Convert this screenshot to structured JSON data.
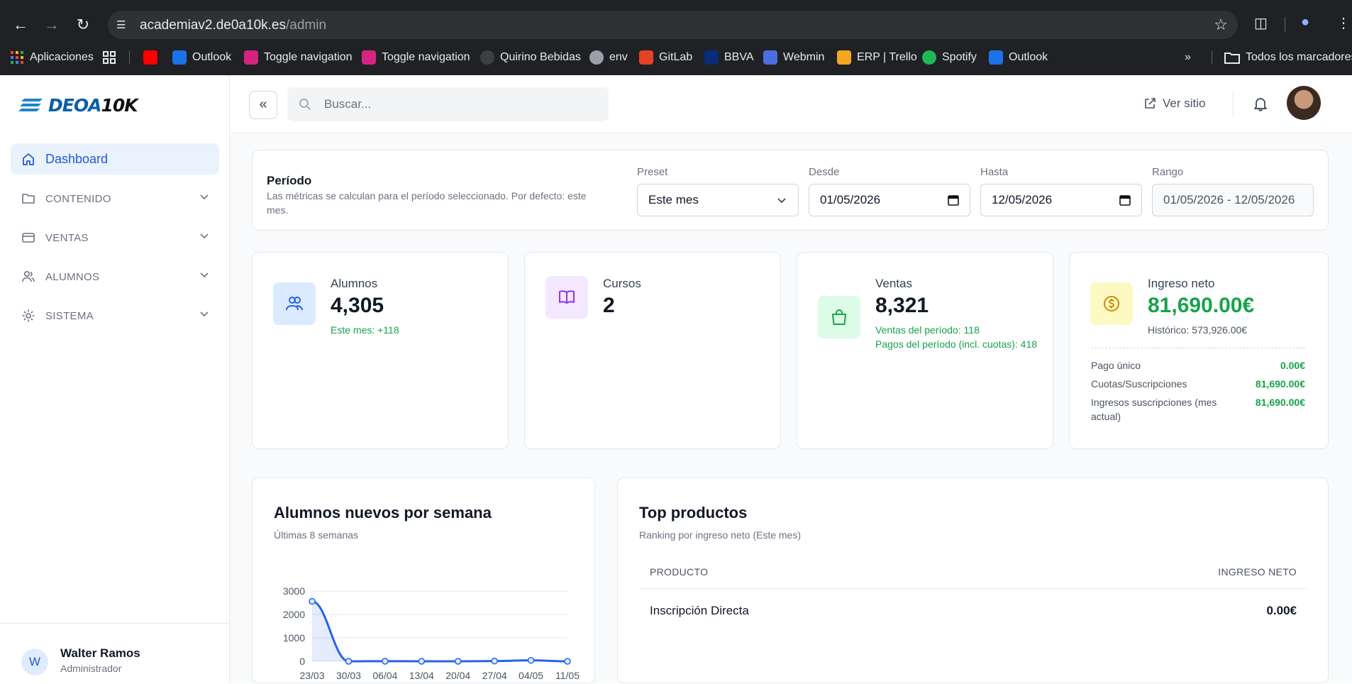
{
  "browser": {
    "url_host": "academiav2.de0a10k.es",
    "url_path": "/admin",
    "bookmarks": [
      {
        "label": "Aplicaciones",
        "color": "#ea4335"
      },
      {
        "label": "",
        "color": "#ff0000"
      },
      {
        "label": "Outlook",
        "color": "#1a73e8"
      },
      {
        "label": "Toggle navigation",
        "color": "#d3257f"
      },
      {
        "label": "Toggle navigation",
        "color": "#d3257f"
      },
      {
        "label": "Quirino Bebidas",
        "color": "#3c4043"
      },
      {
        "label": "env",
        "color": "#9aa0a6"
      },
      {
        "label": "GitLab",
        "color": "#e24329"
      },
      {
        "label": "BBVA",
        "color": "#0a2a7a"
      },
      {
        "label": "Webmin",
        "color": "#4a6ee0"
      },
      {
        "label": "ERP | Trello",
        "color": "#f5a623"
      },
      {
        "label": "Spotify",
        "color": "#1db954"
      },
      {
        "label": "Outlook",
        "color": "#1a73e8"
      }
    ],
    "all_bookmarks": "Todos los marcadores"
  },
  "brand": {
    "name_a": "DEOA",
    "name_b": "10K"
  },
  "sidebar": {
    "dashboard": "Dashboard",
    "sections": [
      "CONTENIDO",
      "VENTAS",
      "ALUMNOS",
      "SISTEMA"
    ],
    "user_name": "Walter Ramos",
    "user_role": "Administrador",
    "user_initial": "W"
  },
  "topbar": {
    "search_placeholder": "Buscar...",
    "view_site": "Ver sitio"
  },
  "period": {
    "title": "Período",
    "description": "Las métricas se calculan para el período seleccionado. Por defecto: este mes.",
    "preset_label": "Preset",
    "preset_value": "Este mes",
    "from_label": "Desde",
    "from_value": "01/05/2026",
    "to_label": "Hasta",
    "to_value": "12/05/2026",
    "range_label": "Rango",
    "range_value": "01/05/2026 - 12/05/2026"
  },
  "stats": {
    "students": {
      "name": "Alumnos",
      "value": "4,305",
      "sub": "Este mes: +118"
    },
    "courses": {
      "name": "Cursos",
      "value": "2"
    },
    "sales": {
      "name": "Ventas",
      "value": "8,321",
      "sub1": "Ventas del período: 118",
      "sub2": "Pagos del período (incl. cuotas): 418"
    },
    "income": {
      "name": "Ingreso neto",
      "value": "81,690.00€",
      "historic": "Histórico: 573,926.00€",
      "rows": [
        {
          "label": "Pago único",
          "value": "0.00€"
        },
        {
          "label": "Cuotas/Suscripciones",
          "value": "81,690.00€"
        },
        {
          "label": "Ingresos suscripciones (mes actual)",
          "value": "81,690.00€"
        }
      ]
    }
  },
  "weekly": {
    "title": "Alumnos nuevos por semana",
    "subtitle": "Últimas 8 semanas"
  },
  "chart_data": {
    "type": "line",
    "categories": [
      "23/03",
      "30/03",
      "06/04",
      "13/04",
      "20/04",
      "27/04",
      "04/05",
      "11/05"
    ],
    "values": [
      2560,
      0,
      5,
      0,
      0,
      10,
      40,
      0
    ],
    "ylim": [
      0,
      3000
    ],
    "yticks": [
      "0",
      "1000",
      "2000",
      "3000"
    ],
    "grid": true,
    "color": "#2563eb"
  },
  "top_products": {
    "title": "Top productos",
    "subtitle": "Ranking por ingreso neto (Este mes)",
    "col_product": "PRODUCTO",
    "col_income": "INGRESO NETO",
    "rows": [
      {
        "product": "Inscripción Directa",
        "income": "0.00€"
      }
    ]
  }
}
